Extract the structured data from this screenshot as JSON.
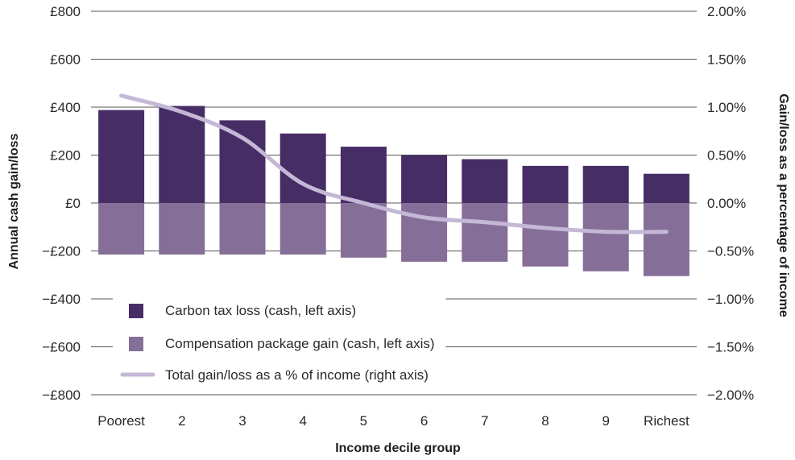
{
  "chart_data": {
    "type": "bar",
    "xlabel": "Income decile group",
    "ylabel": "Annual cash gain/loss",
    "y2label": "Gain/loss as a percentage of income",
    "categories": [
      "Poorest",
      "2",
      "3",
      "4",
      "5",
      "6",
      "7",
      "8",
      "9",
      "Richest"
    ],
    "ylim": [
      -800,
      800
    ],
    "yticks": [
      {
        "value": 800,
        "label": "£800"
      },
      {
        "value": 600,
        "label": "£600"
      },
      {
        "value": 400,
        "label": "£400"
      },
      {
        "value": 200,
        "label": "£200"
      },
      {
        "value": 0,
        "label": "£0"
      },
      {
        "value": -200,
        "label": "−£200"
      },
      {
        "value": -400,
        "label": "−£400"
      },
      {
        "value": -600,
        "label": "−£600"
      },
      {
        "value": -800,
        "label": "−£800"
      }
    ],
    "y2lim": [
      -2.0,
      2.0
    ],
    "y2ticks": [
      {
        "value": 2.0,
        "label": "2.00%"
      },
      {
        "value": 1.5,
        "label": "1.50%"
      },
      {
        "value": 1.0,
        "label": "1.00%"
      },
      {
        "value": 0.5,
        "label": "0.50%"
      },
      {
        "value": 0.0,
        "label": "0.00%"
      },
      {
        "value": -0.5,
        "label": "−0.50%"
      },
      {
        "value": -1.0,
        "label": "−1.00%"
      },
      {
        "value": -1.5,
        "label": "−1.50%"
      },
      {
        "value": -2.0,
        "label": "−2.00%"
      }
    ],
    "grid": true,
    "series": [
      {
        "name": "Carbon tax loss (cash, left axis)",
        "type": "bar",
        "axis": "left",
        "color": "#472d66",
        "values": [
          388,
          405,
          345,
          290,
          235,
          200,
          183,
          155,
          155,
          122
        ]
      },
      {
        "name": "Compensation package gain (cash, left axis)",
        "type": "bar",
        "axis": "left",
        "color": "#856f98",
        "values": [
          -215,
          -215,
          -215,
          -215,
          -228,
          -245,
          -245,
          -265,
          -285,
          -305
        ]
      },
      {
        "name": "Total gain/loss as a % of income (right axis)",
        "type": "line",
        "axis": "right",
        "color": "#c4b8d6",
        "values": [
          1.12,
          0.95,
          0.68,
          0.2,
          0.0,
          -0.15,
          -0.2,
          -0.26,
          -0.3,
          -0.3
        ]
      }
    ],
    "legend_position": "bottom-left, inside plot"
  }
}
